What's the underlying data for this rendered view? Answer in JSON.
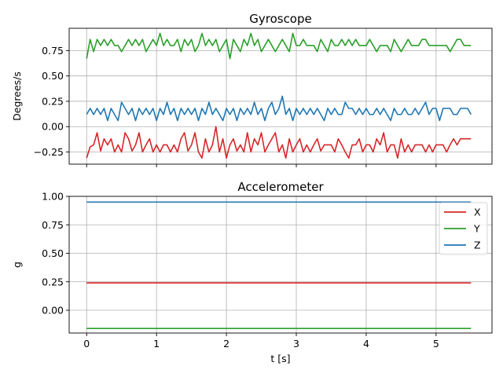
{
  "colors": {
    "X": "#d62728",
    "Y": "#2ca02c",
    "Z": "#1f77b4",
    "grid": "#b0b0b0"
  },
  "chart_data": [
    {
      "type": "line",
      "title": "Gyroscope",
      "xlabel": "",
      "ylabel": "Degrees/s",
      "xlim": [
        -0.25,
        5.8
      ],
      "ylim": [
        -0.37,
        0.97
      ],
      "xticks": [
        0,
        1,
        2,
        3,
        4,
        5
      ],
      "xtick_labels": [
        "",
        "",
        "",
        "",
        "",
        ""
      ],
      "yticks": [
        -0.25,
        0,
        0.25,
        0.5,
        0.75
      ],
      "ytick_labels": [
        "−0.25",
        "0.00",
        "0.25",
        "0.50",
        "0.75"
      ],
      "grid": true,
      "legend": false,
      "series": [
        {
          "key": "X",
          "color": "#d62728",
          "x": [
            0,
            0.05,
            0.1,
            0.15,
            0.2,
            0.25,
            0.3,
            0.35,
            0.4,
            0.45,
            0.5,
            0.55,
            0.6,
            0.65,
            0.7,
            0.75,
            0.8,
            0.85,
            0.9,
            0.95,
            1.0,
            1.05,
            1.1,
            1.15,
            1.2,
            1.25,
            1.3,
            1.35,
            1.4,
            1.45,
            1.5,
            1.55,
            1.6,
            1.65,
            1.7,
            1.75,
            1.8,
            1.85,
            1.9,
            1.95,
            2.0,
            2.05,
            2.1,
            2.15,
            2.2,
            2.25,
            2.3,
            2.35,
            2.4,
            2.45,
            2.5,
            2.55,
            2.6,
            2.65,
            2.7,
            2.75,
            2.8,
            2.85,
            2.9,
            2.95,
            3.0,
            3.05,
            3.1,
            3.15,
            3.2,
            3.25,
            3.3,
            3.35,
            3.4,
            3.45,
            3.5,
            3.55,
            3.6,
            3.65,
            3.7,
            3.75,
            3.8,
            3.85,
            3.9,
            3.95,
            4.0,
            4.05,
            4.1,
            4.15,
            4.2,
            4.25,
            4.3,
            4.35,
            4.4,
            4.45,
            4.5,
            4.55,
            4.6,
            4.65,
            4.7,
            4.75,
            4.8,
            4.85,
            4.9,
            4.95,
            5.0,
            5.05,
            5.1,
            5.15,
            5.2,
            5.25,
            5.3,
            5.35,
            5.4,
            5.45,
            5.5
          ],
          "values": [
            -0.31,
            -0.2,
            -0.18,
            -0.06,
            -0.24,
            -0.12,
            -0.18,
            -0.12,
            -0.25,
            -0.18,
            -0.25,
            -0.06,
            -0.12,
            -0.24,
            -0.18,
            -0.06,
            -0.25,
            -0.18,
            -0.12,
            -0.25,
            -0.18,
            -0.25,
            -0.18,
            -0.18,
            -0.25,
            -0.18,
            -0.25,
            -0.12,
            -0.06,
            -0.24,
            -0.18,
            -0.06,
            -0.25,
            -0.31,
            -0.12,
            -0.25,
            -0.18,
            0,
            -0.25,
            -0.12,
            -0.31,
            -0.18,
            -0.12,
            -0.24,
            -0.18,
            -0.25,
            -0.06,
            -0.25,
            -0.12,
            -0.18,
            -0.06,
            -0.25,
            -0.18,
            -0.12,
            -0.06,
            -0.25,
            -0.18,
            -0.31,
            -0.12,
            -0.25,
            -0.18,
            -0.12,
            -0.25,
            -0.18,
            -0.25,
            -0.18,
            -0.12,
            -0.24,
            -0.18,
            -0.18,
            -0.18,
            -0.25,
            -0.12,
            -0.18,
            -0.25,
            -0.31,
            -0.18,
            -0.18,
            -0.12,
            -0.25,
            -0.18,
            -0.18,
            -0.25,
            -0.12,
            -0.18,
            -0.06,
            -0.25,
            -0.18,
            -0.18,
            -0.31,
            -0.12,
            -0.25,
            -0.18,
            -0.25,
            -0.18,
            -0.18,
            -0.18,
            -0.25,
            -0.18,
            -0.25,
            -0.18,
            -0.18,
            -0.18,
            -0.25,
            -0.18,
            -0.12,
            -0.18,
            -0.12,
            -0.12,
            -0.12,
            -0.12
          ]
        },
        {
          "key": "Y",
          "color": "#2ca02c",
          "x": [
            0,
            0.05,
            0.1,
            0.15,
            0.2,
            0.25,
            0.3,
            0.35,
            0.4,
            0.45,
            0.5,
            0.55,
            0.6,
            0.65,
            0.7,
            0.75,
            0.8,
            0.85,
            0.9,
            0.95,
            1.0,
            1.05,
            1.1,
            1.15,
            1.2,
            1.25,
            1.3,
            1.35,
            1.4,
            1.45,
            1.5,
            1.55,
            1.6,
            1.65,
            1.7,
            1.75,
            1.8,
            1.85,
            1.9,
            1.95,
            2.0,
            2.05,
            2.1,
            2.15,
            2.2,
            2.25,
            2.3,
            2.35,
            2.4,
            2.45,
            2.5,
            2.55,
            2.6,
            2.65,
            2.7,
            2.75,
            2.8,
            2.85,
            2.9,
            2.95,
            3.0,
            3.05,
            3.1,
            3.15,
            3.2,
            3.25,
            3.3,
            3.35,
            3.4,
            3.45,
            3.5,
            3.55,
            3.6,
            3.65,
            3.7,
            3.75,
            3.8,
            3.85,
            3.9,
            3.95,
            4.0,
            4.05,
            4.1,
            4.15,
            4.2,
            4.25,
            4.3,
            4.35,
            4.4,
            4.45,
            4.5,
            4.55,
            4.6,
            4.65,
            4.7,
            4.75,
            4.8,
            4.85,
            4.9,
            4.95,
            5.0,
            5.05,
            5.1,
            5.15,
            5.2,
            5.25,
            5.3,
            5.35,
            5.4,
            5.45,
            5.5
          ],
          "values": [
            0.67,
            0.86,
            0.74,
            0.86,
            0.8,
            0.86,
            0.8,
            0.86,
            0.8,
            0.8,
            0.74,
            0.8,
            0.86,
            0.8,
            0.86,
            0.8,
            0.86,
            0.74,
            0.8,
            0.86,
            0.8,
            0.92,
            0.8,
            0.86,
            0.8,
            0.8,
            0.86,
            0.74,
            0.86,
            0.8,
            0.86,
            0.74,
            0.8,
            0.92,
            0.8,
            0.86,
            0.8,
            0.86,
            0.74,
            0.8,
            0.86,
            0.67,
            0.86,
            0.8,
            0.74,
            0.86,
            0.8,
            0.92,
            0.8,
            0.86,
            0.74,
            0.8,
            0.86,
            0.8,
            0.74,
            0.8,
            0.86,
            0.8,
            0.74,
            0.92,
            0.8,
            0.8,
            0.86,
            0.8,
            0.8,
            0.8,
            0.74,
            0.86,
            0.8,
            0.74,
            0.86,
            0.8,
            0.8,
            0.86,
            0.8,
            0.86,
            0.8,
            0.86,
            0.8,
            0.8,
            0.8,
            0.86,
            0.8,
            0.74,
            0.8,
            0.8,
            0.8,
            0.74,
            0.86,
            0.8,
            0.74,
            0.8,
            0.86,
            0.8,
            0.8,
            0.8,
            0.86,
            0.86,
            0.8,
            0.8,
            0.8,
            0.8,
            0.8,
            0.8,
            0.74,
            0.8,
            0.86,
            0.86,
            0.8,
            0.8,
            0.8
          ]
        },
        {
          "key": "Z",
          "color": "#1f77b4",
          "x": [
            0,
            0.05,
            0.1,
            0.15,
            0.2,
            0.25,
            0.3,
            0.35,
            0.4,
            0.45,
            0.5,
            0.55,
            0.6,
            0.65,
            0.7,
            0.75,
            0.8,
            0.85,
            0.9,
            0.95,
            1.0,
            1.05,
            1.1,
            1.15,
            1.2,
            1.25,
            1.3,
            1.35,
            1.4,
            1.45,
            1.5,
            1.55,
            1.6,
            1.65,
            1.7,
            1.75,
            1.8,
            1.85,
            1.9,
            1.95,
            2.0,
            2.05,
            2.1,
            2.15,
            2.2,
            2.25,
            2.3,
            2.35,
            2.4,
            2.45,
            2.5,
            2.55,
            2.6,
            2.65,
            2.7,
            2.75,
            2.8,
            2.85,
            2.9,
            2.95,
            3.0,
            3.05,
            3.1,
            3.15,
            3.2,
            3.25,
            3.3,
            3.35,
            3.4,
            3.45,
            3.5,
            3.55,
            3.6,
            3.65,
            3.7,
            3.75,
            3.8,
            3.85,
            3.9,
            3.95,
            4.0,
            4.05,
            4.1,
            4.15,
            4.2,
            4.25,
            4.3,
            4.35,
            4.4,
            4.45,
            4.5,
            4.55,
            4.6,
            4.65,
            4.7,
            4.75,
            4.8,
            4.85,
            4.9,
            4.95,
            5.0,
            5.05,
            5.1,
            5.15,
            5.2,
            5.25,
            5.3,
            5.35,
            5.4,
            5.45,
            5.5
          ],
          "values": [
            0.12,
            0.18,
            0.12,
            0.18,
            0.12,
            0.18,
            0.06,
            0.18,
            0.12,
            0.06,
            0.24,
            0.18,
            0.12,
            0.18,
            0.06,
            0.18,
            0.12,
            0.18,
            0.12,
            0.18,
            0.06,
            0.18,
            0.12,
            0.24,
            0.12,
            0.18,
            0.06,
            0.18,
            0.12,
            0.18,
            0.12,
            0.18,
            0.06,
            0.18,
            0.12,
            0.24,
            0.12,
            0.18,
            0.12,
            0.06,
            0.18,
            0.12,
            0.18,
            0.06,
            0.18,
            0.12,
            0.18,
            0.12,
            0.24,
            0.12,
            0.18,
            0.06,
            0.18,
            0.24,
            0.12,
            0.18,
            0.3,
            0.12,
            0.18,
            0.06,
            0.18,
            0.12,
            0.18,
            0.12,
            0.18,
            0.12,
            0.18,
            0.12,
            0.06,
            0.18,
            0.12,
            0.18,
            0.12,
            0.12,
            0.24,
            0.18,
            0.18,
            0.12,
            0.18,
            0.12,
            0.18,
            0.12,
            0.12,
            0.18,
            0.12,
            0.18,
            0.12,
            0.06,
            0.18,
            0.12,
            0.12,
            0.18,
            0.12,
            0.12,
            0.18,
            0.12,
            0.18,
            0.24,
            0.12,
            0.18,
            0.18,
            0.06,
            0.18,
            0.18,
            0.18,
            0.12,
            0.12,
            0.18,
            0.18,
            0.18,
            0.12
          ]
        }
      ]
    },
    {
      "type": "line",
      "title": "Accelerometer",
      "xlabel": "t [s]",
      "ylabel": "g",
      "xlim": [
        -0.25,
        5.8
      ],
      "ylim": [
        -0.2,
        1.0
      ],
      "xticks": [
        0,
        1,
        2,
        3,
        4,
        5
      ],
      "xtick_labels": [
        "0",
        "1",
        "2",
        "3",
        "4",
        "5"
      ],
      "yticks": [
        0,
        0.25,
        0.5,
        0.75,
        1.0
      ],
      "ytick_labels": [
        "0.00",
        "0.25",
        "0.50",
        "0.75",
        "1.00"
      ],
      "grid": true,
      "legend": "top-right",
      "series": [
        {
          "key": "X",
          "name": "X",
          "color": "#d62728",
          "x": [
            0,
            0.5,
            1.0,
            1.5,
            2.0,
            2.5,
            3.0,
            3.5,
            4.0,
            4.5,
            5.0,
            5.5
          ],
          "values": [
            0.24,
            0.24,
            0.24,
            0.24,
            0.24,
            0.24,
            0.24,
            0.24,
            0.24,
            0.24,
            0.24,
            0.24
          ]
        },
        {
          "key": "Y",
          "name": "Y",
          "color": "#2ca02c",
          "x": [
            0,
            0.5,
            1.0,
            1.5,
            2.0,
            2.5,
            3.0,
            3.5,
            4.0,
            4.5,
            5.0,
            5.5
          ],
          "values": [
            -0.16,
            -0.16,
            -0.16,
            -0.16,
            -0.16,
            -0.16,
            -0.16,
            -0.16,
            -0.16,
            -0.16,
            -0.16,
            -0.16
          ]
        },
        {
          "key": "Z",
          "name": "Z",
          "color": "#1f77b4",
          "x": [
            0,
            0.5,
            1.0,
            1.5,
            2.0,
            2.5,
            3.0,
            3.5,
            4.0,
            4.5,
            5.0,
            5.5
          ],
          "values": [
            0.95,
            0.95,
            0.95,
            0.95,
            0.95,
            0.95,
            0.95,
            0.95,
            0.95,
            0.95,
            0.95,
            0.95
          ]
        }
      ]
    }
  ]
}
